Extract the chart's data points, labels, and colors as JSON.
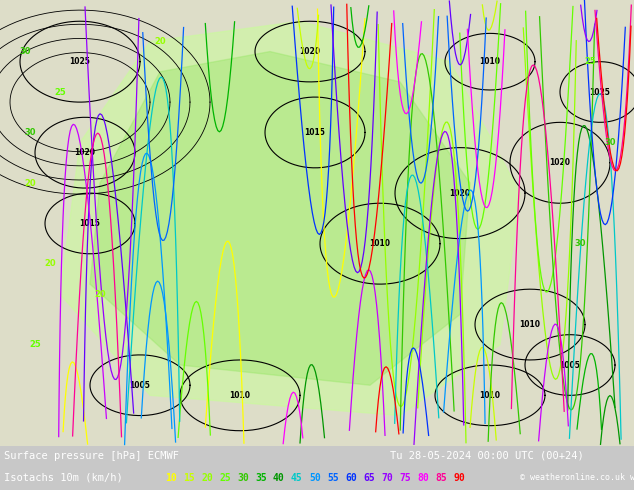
{
  "title_line1": "Surface pressure [hPa] ECMWF",
  "title_line2": "Tu 28-05-2024 00:00 UTC (00+24)",
  "legend_label": "Isotachs 10m (km/h)",
  "copyright": "© weatheronline.co.uk",
  "isotach_values": [
    10,
    15,
    20,
    25,
    30,
    35,
    40,
    45,
    50,
    55,
    60,
    65,
    70,
    75,
    80,
    85,
    90
  ],
  "isotach_colors": [
    "#ffff00",
    "#c8ff00",
    "#96ff00",
    "#64ff00",
    "#32c800",
    "#00b400",
    "#009600",
    "#00c8c8",
    "#0096ff",
    "#0064ff",
    "#0032ff",
    "#6400ff",
    "#9600ff",
    "#c800ff",
    "#ff00ff",
    "#ff0096",
    "#ff0000"
  ],
  "bg_color": "#d0d0d0",
  "map_bg": "#e8e8d8",
  "bottom_bar_color": "#000000",
  "fig_width": 6.34,
  "fig_height": 4.9,
  "dpi": 100
}
